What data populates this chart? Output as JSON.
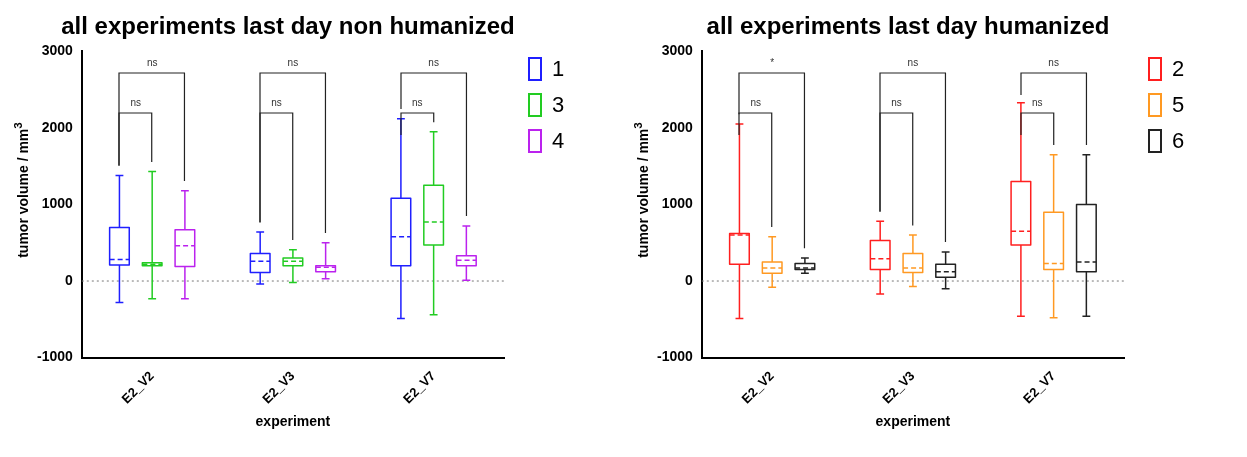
{
  "chart_data": [
    {
      "type": "box",
      "title": "all experiments last day non humanized",
      "xlabel": "experiment",
      "ylabel": "tumor volume / mm$^{3}$",
      "categories": [
        "E2_V2",
        "E2_V3",
        "E2_V7"
      ],
      "ylim": [
        -1000,
        3000
      ],
      "yticks": [
        -1000,
        0,
        1000,
        2000,
        3000
      ],
      "grid": false,
      "legend": "right",
      "ref_lines": [
        {
          "axis": "y",
          "value": 0,
          "line_style": "dotted"
        }
      ],
      "annotations": [
        "ns",
        "ns",
        "ns",
        "ns",
        "ns",
        "ns"
      ],
      "series": [
        {
          "name": "1",
          "color": "#1f1fff",
          "boxes": [
            {
              "low": -280,
              "q1": 210,
              "median": 280,
              "q3": 700,
              "high": 1380
            },
            {
              "low": -40,
              "q1": 110,
              "median": 260,
              "q3": 360,
              "high": 640
            },
            {
              "low": -490,
              "q1": 200,
              "median": 580,
              "q3": 1080,
              "high": 2120
            }
          ]
        },
        {
          "name": "3",
          "color": "#22cc22",
          "boxes": [
            {
              "low": -230,
              "q1": 200,
              "median": 220,
              "q3": 240,
              "high": 1430
            },
            {
              "low": -20,
              "q1": 200,
              "median": 260,
              "q3": 300,
              "high": 410
            },
            {
              "low": -440,
              "q1": 470,
              "median": 770,
              "q3": 1250,
              "high": 1950
            }
          ]
        },
        {
          "name": "4",
          "color": "#bb22ee",
          "boxes": [
            {
              "low": -230,
              "q1": 190,
              "median": 460,
              "q3": 670,
              "high": 1180
            },
            {
              "low": 30,
              "q1": 120,
              "median": 180,
              "q3": 200,
              "high": 500
            },
            {
              "low": 10,
              "q1": 200,
              "median": 270,
              "q3": 330,
              "high": 720
            }
          ]
        }
      ]
    },
    {
      "type": "box",
      "title": "all experiments last day humanized",
      "xlabel": "experiment",
      "ylabel": "tumor volume / mm$^{3}$",
      "categories": [
        "E2_V2",
        "E2_V3",
        "E2_V7"
      ],
      "ylim": [
        -1000,
        3000
      ],
      "yticks": [
        -1000,
        0,
        1000,
        2000,
        3000
      ],
      "grid": false,
      "legend": "right",
      "ref_lines": [
        {
          "axis": "y",
          "value": 0,
          "line_style": "dotted"
        }
      ],
      "annotations": [
        "ns",
        "*",
        "ns",
        "ns",
        "ns",
        "ns"
      ],
      "series": [
        {
          "name": "2",
          "color": "#ff1f1f",
          "boxes": [
            {
              "low": -490,
              "q1": 220,
              "median": 600,
              "q3": 620,
              "high": 2050
            },
            {
              "low": -170,
              "q1": 150,
              "median": 290,
              "q3": 530,
              "high": 780
            },
            {
              "low": -460,
              "q1": 470,
              "median": 650,
              "q3": 1300,
              "high": 2330
            }
          ]
        },
        {
          "name": "5",
          "color": "#ff9922",
          "boxes": [
            {
              "low": -80,
              "q1": 100,
              "median": 170,
              "q3": 250,
              "high": 580
            },
            {
              "low": -70,
              "q1": 110,
              "median": 170,
              "q3": 360,
              "high": 600
            },
            {
              "low": -480,
              "q1": 150,
              "median": 230,
              "q3": 900,
              "high": 1650
            }
          ]
        },
        {
          "name": "6",
          "color": "#222222",
          "boxes": [
            {
              "low": 100,
              "q1": 150,
              "median": 170,
              "q3": 230,
              "high": 300
            },
            {
              "low": -100,
              "q1": 50,
              "median": 120,
              "q3": 220,
              "high": 380
            },
            {
              "low": -460,
              "q1": 120,
              "median": 250,
              "q3": 1000,
              "high": 1650
            }
          ]
        }
      ]
    }
  ]
}
